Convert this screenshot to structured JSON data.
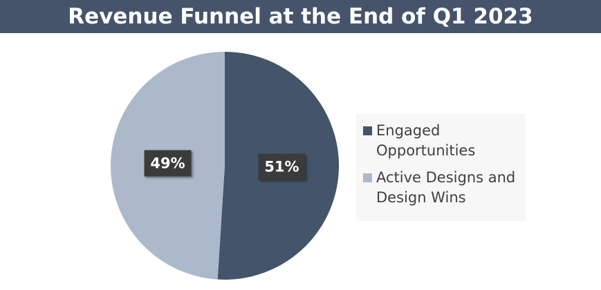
{
  "chart_data": {
    "type": "pie",
    "title": "Revenue Funnel at the End of Q1 2023",
    "categories": [
      "Engaged Opportunities",
      "Active Designs and Design Wins"
    ],
    "values": [
      51,
      49
    ],
    "value_labels": [
      "51%",
      "49%"
    ],
    "colors": [
      "#44546a",
      "#acb9ca"
    ],
    "legend": "right"
  }
}
